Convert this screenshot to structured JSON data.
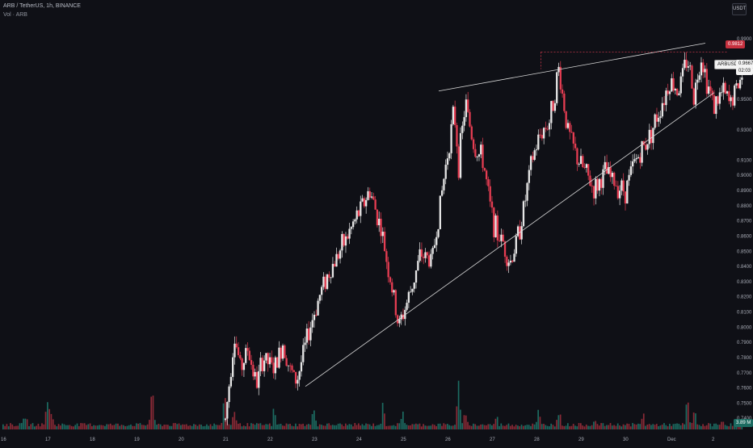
{
  "header": {
    "symbol_line": "ARB / TetherUS, 1h, BINANCE",
    "volume_line": "Vol · ARB",
    "currency_button": "USDT"
  },
  "price_badges": {
    "last_price": "0.9812",
    "symbol": "ARBUSDT",
    "current": "0.9667",
    "countdown": "02:03",
    "volume": "3.89 M"
  },
  "colors": {
    "background": "#0f1016",
    "up": "#e6e6e6",
    "down": "#e63d52",
    "vol_up": "#1c6b61",
    "vol_down": "#8a2a36",
    "trendline": "#d9d9d9",
    "last_line": "#e63d52"
  },
  "chart_data": {
    "type": "candlestick",
    "y_ticks": [
      "0.9900",
      "0.9700",
      "0.9500",
      "0.9300",
      "0.9100",
      "0.9000",
      "0.8900",
      "0.8800",
      "0.8700",
      "0.8600",
      "0.8500",
      "0.8400",
      "0.8300",
      "0.8200",
      "0.8100",
      "0.8000",
      "0.7900",
      "0.7800",
      "0.7700",
      "0.7600",
      "0.7500",
      "0.7400"
    ],
    "x_ticks": [
      "16",
      "17",
      "18",
      "19",
      "20",
      "21",
      "22",
      "23",
      "24",
      "25",
      "26",
      "27",
      "28",
      "29",
      "30",
      "Dec",
      "2"
    ],
    "ylim": [
      0.7295,
      0.9995
    ],
    "price_path": [
      [
        0.0,
        0.738
      ],
      [
        5.0,
        0.739
      ],
      [
        5.2,
        0.795
      ],
      [
        5.35,
        0.772
      ],
      [
        5.5,
        0.786
      ],
      [
        5.7,
        0.762
      ],
      [
        5.85,
        0.78
      ],
      [
        6.1,
        0.772
      ],
      [
        6.3,
        0.79
      ],
      [
        6.45,
        0.772
      ],
      [
        6.6,
        0.764
      ],
      [
        6.9,
        0.8
      ],
      [
        7.2,
        0.828
      ],
      [
        7.5,
        0.846
      ],
      [
        7.75,
        0.86
      ],
      [
        8.0,
        0.875
      ],
      [
        8.25,
        0.89
      ],
      [
        8.5,
        0.865
      ],
      [
        8.75,
        0.825
      ],
      [
        8.9,
        0.8
      ],
      [
        9.15,
        0.822
      ],
      [
        9.4,
        0.848
      ],
      [
        9.65,
        0.844
      ],
      [
        9.8,
        0.874
      ],
      [
        10.0,
        0.915
      ],
      [
        10.15,
        0.942
      ],
      [
        10.25,
        0.908
      ],
      [
        10.4,
        0.948
      ],
      [
        10.6,
        0.918
      ],
      [
        10.8,
        0.91
      ],
      [
        10.95,
        0.88
      ],
      [
        11.1,
        0.862
      ],
      [
        11.25,
        0.856
      ],
      [
        11.4,
        0.842
      ],
      [
        11.55,
        0.856
      ],
      [
        11.7,
        0.876
      ],
      [
        11.9,
        0.91
      ],
      [
        12.1,
        0.928
      ],
      [
        12.3,
        0.936
      ],
      [
        12.5,
        0.97
      ],
      [
        12.7,
        0.93
      ],
      [
        12.9,
        0.912
      ],
      [
        13.1,
        0.902
      ],
      [
        13.3,
        0.89
      ],
      [
        13.55,
        0.902
      ],
      [
        13.8,
        0.894
      ],
      [
        14.0,
        0.89
      ],
      [
        14.2,
        0.908
      ],
      [
        14.4,
        0.918
      ],
      [
        14.6,
        0.93
      ],
      [
        14.85,
        0.95
      ],
      [
        15.0,
        0.962
      ],
      [
        15.2,
        0.956
      ],
      [
        15.4,
        0.978
      ],
      [
        15.55,
        0.952
      ],
      [
        15.7,
        0.98
      ],
      [
        15.85,
        0.96
      ],
      [
        16.0,
        0.946
      ],
      [
        16.2,
        0.955
      ],
      [
        16.35,
        0.947
      ],
      [
        16.5,
        0.957
      ],
      [
        16.65,
        0.967
      ]
    ],
    "volume_peaks": [
      [
        0.5,
        0.28
      ],
      [
        1.0,
        0.6
      ],
      [
        1.1,
        0.25
      ],
      [
        3.35,
        0.7
      ],
      [
        5.0,
        0.72
      ],
      [
        5.2,
        0.38
      ],
      [
        6.1,
        0.3
      ],
      [
        7.0,
        0.4
      ],
      [
        8.55,
        0.35
      ],
      [
        9.0,
        0.3
      ],
      [
        10.25,
        0.62
      ],
      [
        10.4,
        0.4
      ],
      [
        11.1,
        0.22
      ],
      [
        12.05,
        0.28
      ],
      [
        12.5,
        0.38
      ],
      [
        13.3,
        0.2
      ],
      [
        14.4,
        0.28
      ],
      [
        15.4,
        0.45
      ],
      [
        15.55,
        0.32
      ],
      [
        16.2,
        0.2
      ]
    ]
  }
}
